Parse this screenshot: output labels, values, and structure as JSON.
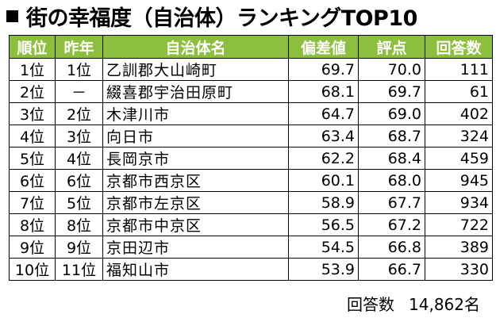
{
  "title": "街の幸福度（自治体）ランキングTOP10",
  "colors": {
    "header_bg": "#8dbf3f",
    "header_text": "#ffffff",
    "border": "#000000"
  },
  "table": {
    "headers": [
      "順位",
      "昨年",
      "自治体名",
      "偏差値",
      "評点",
      "回答数"
    ],
    "rows": [
      [
        "1位",
        "1位",
        "乙訓郡大山崎町",
        "69.7",
        "70.0",
        "111"
      ],
      [
        "2位",
        "－",
        "綴喜郡宇治田原町",
        "68.1",
        "69.7",
        "61"
      ],
      [
        "3位",
        "2位",
        "木津川市",
        "64.7",
        "69.0",
        "402"
      ],
      [
        "4位",
        "3位",
        "向日市",
        "63.4",
        "68.7",
        "324"
      ],
      [
        "5位",
        "4位",
        "長岡京市",
        "62.2",
        "68.4",
        "459"
      ],
      [
        "6位",
        "6位",
        "京都市西京区",
        "60.1",
        "68.0",
        "945"
      ],
      [
        "7位",
        "5位",
        "京都市左京区",
        "58.9",
        "67.7",
        "934"
      ],
      [
        "8位",
        "8位",
        "京都市中京区",
        "56.5",
        "67.2",
        "722"
      ],
      [
        "9位",
        "9位",
        "京田辺市",
        "54.5",
        "66.8",
        "389"
      ],
      [
        "10位",
        "11位",
        "福知山市",
        "53.9",
        "66.7",
        "330"
      ]
    ]
  },
  "footer": {
    "label": "回答数",
    "value": "14,862名"
  }
}
